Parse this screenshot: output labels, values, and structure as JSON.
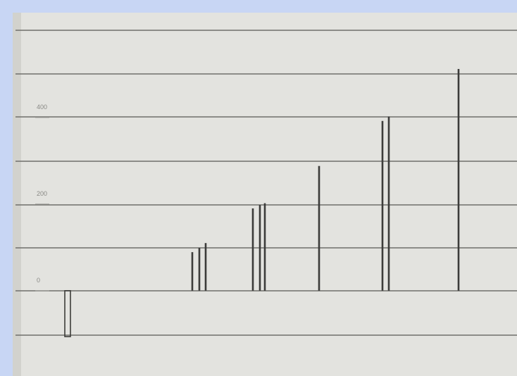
{
  "chart_data": {
    "type": "bar",
    "categories": [
      null,
      null,
      null,
      null,
      null,
      null,
      null,
      null,
      null,
      null,
      null
    ],
    "values": [
      -106,
      89,
      99,
      110,
      190,
      198,
      202,
      288,
      392,
      402,
      512
    ],
    "color": "#3c3c3a",
    "ylim": [
      -197,
      642
    ],
    "yticks": [
      0,
      200,
      400
    ]
  }
}
